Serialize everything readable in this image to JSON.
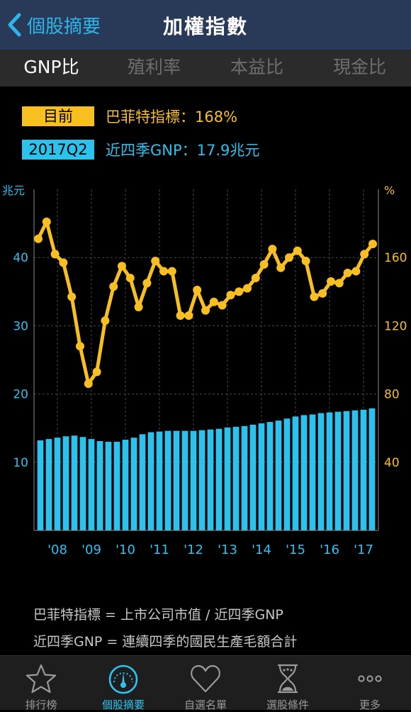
{
  "nav": {
    "back_label": "個股摘要",
    "title": "加權指數"
  },
  "tabs": [
    {
      "label": "GNP比",
      "active": true
    },
    {
      "label": "殖利率",
      "active": false
    },
    {
      "label": "本益比",
      "active": false
    },
    {
      "label": "現金比",
      "active": false
    }
  ],
  "info": [
    {
      "badge": "目前",
      "text": "巴菲特指標：168%",
      "color": "#f7bf22"
    },
    {
      "badge": "2017Q2",
      "text": "近四季GNP：17.9兆元",
      "color": "#2bc2ee"
    }
  ],
  "chart_data": {
    "type": "bar+line",
    "left_axis": {
      "label": "兆元",
      "ticks": [
        10,
        20,
        30,
        40
      ],
      "range": [
        0,
        50
      ],
      "color": "#2bc2ee"
    },
    "right_axis": {
      "label": "%",
      "ticks": [
        40,
        80,
        120,
        160
      ],
      "range": [
        0,
        200
      ],
      "color": "#f7bf22"
    },
    "x_tick_labels": [
      "'08",
      "'09",
      "'10",
      "'11",
      "'12",
      "'13",
      "'14",
      "'15",
      "'16",
      "'17"
    ],
    "x_tick_index": [
      2,
      6,
      10,
      14,
      18,
      22,
      26,
      30,
      34,
      38
    ],
    "grid": true,
    "bar_series": {
      "axis": "left",
      "color": "#2bc2ee",
      "values": [
        13.2,
        13.4,
        13.6,
        13.8,
        13.9,
        13.7,
        13.4,
        13.1,
        13.0,
        13.0,
        13.3,
        13.6,
        14.1,
        14.4,
        14.5,
        14.6,
        14.6,
        14.6,
        14.6,
        14.7,
        14.8,
        14.9,
        15.1,
        15.2,
        15.3,
        15.5,
        15.7,
        15.9,
        16.1,
        16.4,
        16.7,
        16.9,
        17.0,
        17.2,
        17.3,
        17.4,
        17.5,
        17.6,
        17.7,
        17.9
      ]
    },
    "line_series": {
      "axis": "right",
      "color": "#f7bf22",
      "values": [
        171,
        181,
        162,
        157,
        137,
        108,
        86,
        93,
        123,
        143,
        155,
        148,
        131,
        145,
        158,
        152,
        152,
        126,
        126,
        141,
        129,
        134,
        132,
        138,
        140,
        142,
        148,
        156,
        165,
        154,
        160,
        164,
        158,
        137,
        139,
        146,
        145,
        151,
        152,
        162,
        168
      ]
    }
  },
  "notes": [
    "巴菲特指標 = 上市公司市值 / 近四季GNP",
    "近四季GNP = 連續四季的國民生產毛額合計"
  ],
  "bottom_nav": [
    {
      "label": "排行榜",
      "icon": "star-icon",
      "active": false
    },
    {
      "label": "個股摘要",
      "icon": "gauge-icon",
      "active": true
    },
    {
      "label": "自選名單",
      "icon": "heart-icon",
      "active": false
    },
    {
      "label": "選股條件",
      "icon": "hourglass-icon",
      "active": false
    },
    {
      "label": "更多",
      "icon": "more-icon",
      "active": false
    }
  ]
}
